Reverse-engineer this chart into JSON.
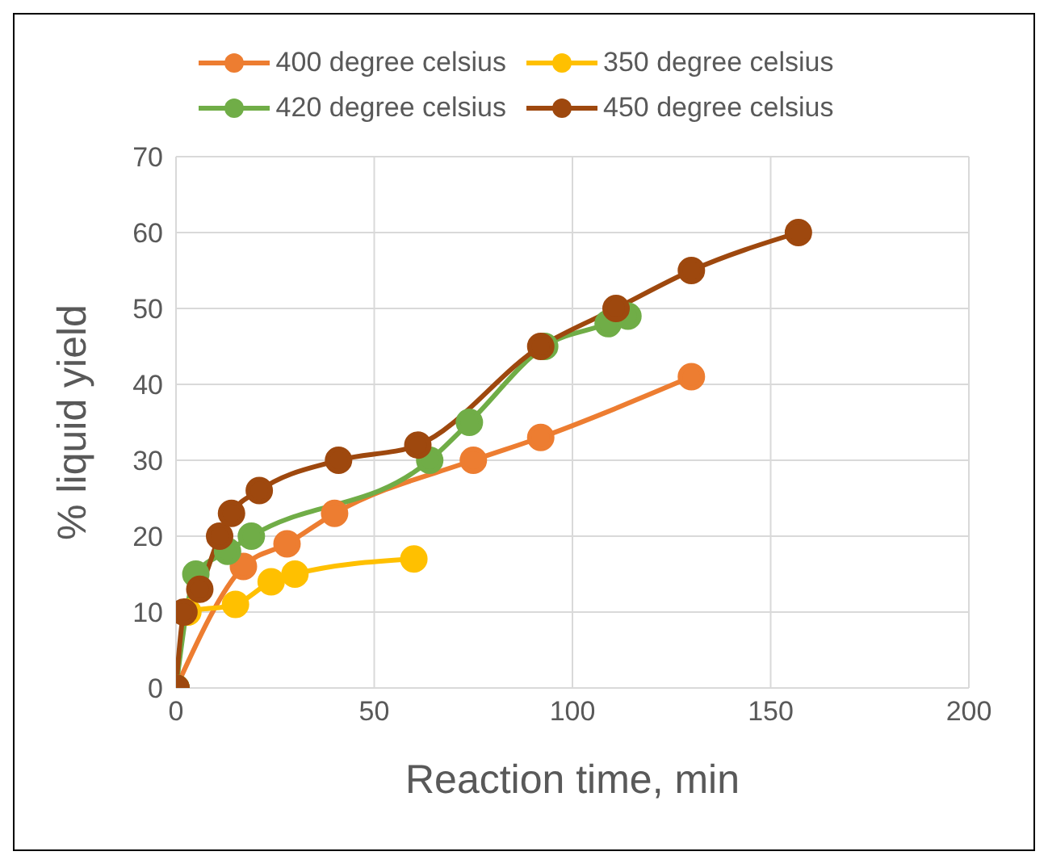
{
  "chart_data": {
    "type": "line",
    "xlabel": "Reaction time, min",
    "ylabel": "% liquid yield",
    "xlim": [
      0,
      200
    ],
    "xticks": [
      0,
      50,
      100,
      150,
      200
    ],
    "ylim": [
      0,
      70
    ],
    "yticks": [
      0,
      10,
      20,
      30,
      40,
      50,
      60,
      70
    ],
    "grid": true,
    "legend": "top",
    "marker": "circle",
    "line_style": "solid",
    "series": [
      {
        "name": "400 degree celsius",
        "color": "#ed7d31",
        "x": [
          0,
          17,
          28,
          40,
          75,
          92,
          130
        ],
        "values": [
          0,
          16,
          19,
          23,
          30,
          33,
          41
        ]
      },
      {
        "name": "350 degree celsius",
        "color": "#ffc000",
        "x": [
          0,
          3,
          15,
          24,
          30,
          60
        ],
        "values": [
          0,
          10,
          11,
          14,
          15,
          17
        ]
      },
      {
        "name": "420 degree celsius",
        "color": "#70ad47",
        "x": [
          0,
          5,
          13,
          19,
          64,
          74,
          93,
          109,
          114
        ],
        "values": [
          0,
          15,
          18,
          20,
          30,
          35,
          45,
          48,
          49
        ]
      },
      {
        "name": "450 degree celsius",
        "color": "#9e480e",
        "x": [
          0,
          2,
          6,
          11,
          14,
          21,
          41,
          61,
          92,
          111,
          130,
          157
        ],
        "values": [
          0,
          10,
          13,
          20,
          23,
          26,
          30,
          32,
          45,
          50,
          55,
          60
        ]
      }
    ]
  }
}
